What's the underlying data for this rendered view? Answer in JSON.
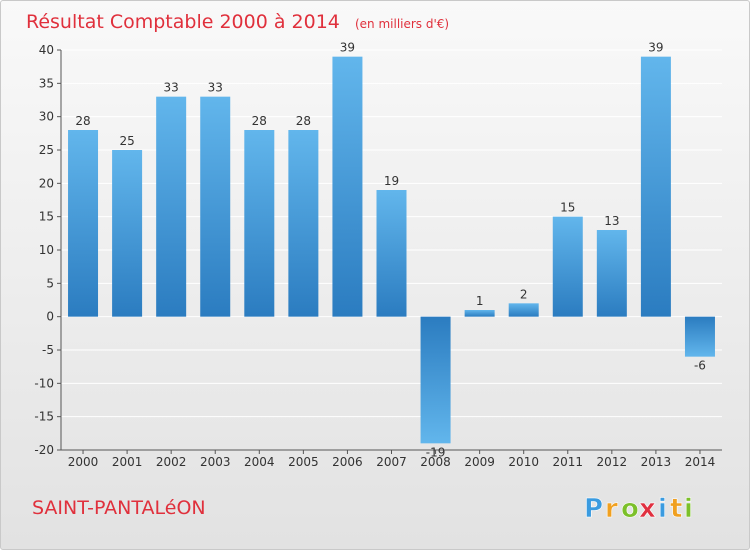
{
  "chart_data": {
    "type": "bar",
    "title": "Résultat Comptable 2000 à 2014",
    "unit_note": "(en milliers d'€)",
    "categories": [
      "2000",
      "2001",
      "2002",
      "2003",
      "2004",
      "2005",
      "2006",
      "2007",
      "2008",
      "2009",
      "2010",
      "2011",
      "2012",
      "2013",
      "2014"
    ],
    "values": [
      28,
      25,
      33,
      33,
      28,
      28,
      39,
      19,
      -19,
      1,
      2,
      15,
      13,
      39,
      -6
    ],
    "ylim": [
      -20,
      40
    ],
    "yticks": [
      -20,
      -15,
      -10,
      -5,
      0,
      5,
      10,
      15,
      20,
      25,
      30,
      35,
      40
    ],
    "grid": true,
    "xlabel": "",
    "ylabel": ""
  },
  "footer": {
    "commune": "SAINT-PANTALéON",
    "brand_letters": [
      "P",
      "r",
      "o",
      "x",
      "i",
      "t",
      "i"
    ],
    "brand_colors": [
      "#3a9be0",
      "#f0a020",
      "#7cc02a",
      "#e03040",
      "#3a9be0",
      "#f0a020",
      "#7cc02a"
    ]
  },
  "colors": {
    "bar_light": "#62b6ec",
    "bar_dark": "#2b7cc0",
    "title": "#e0303c",
    "grid": "#ffffff"
  }
}
